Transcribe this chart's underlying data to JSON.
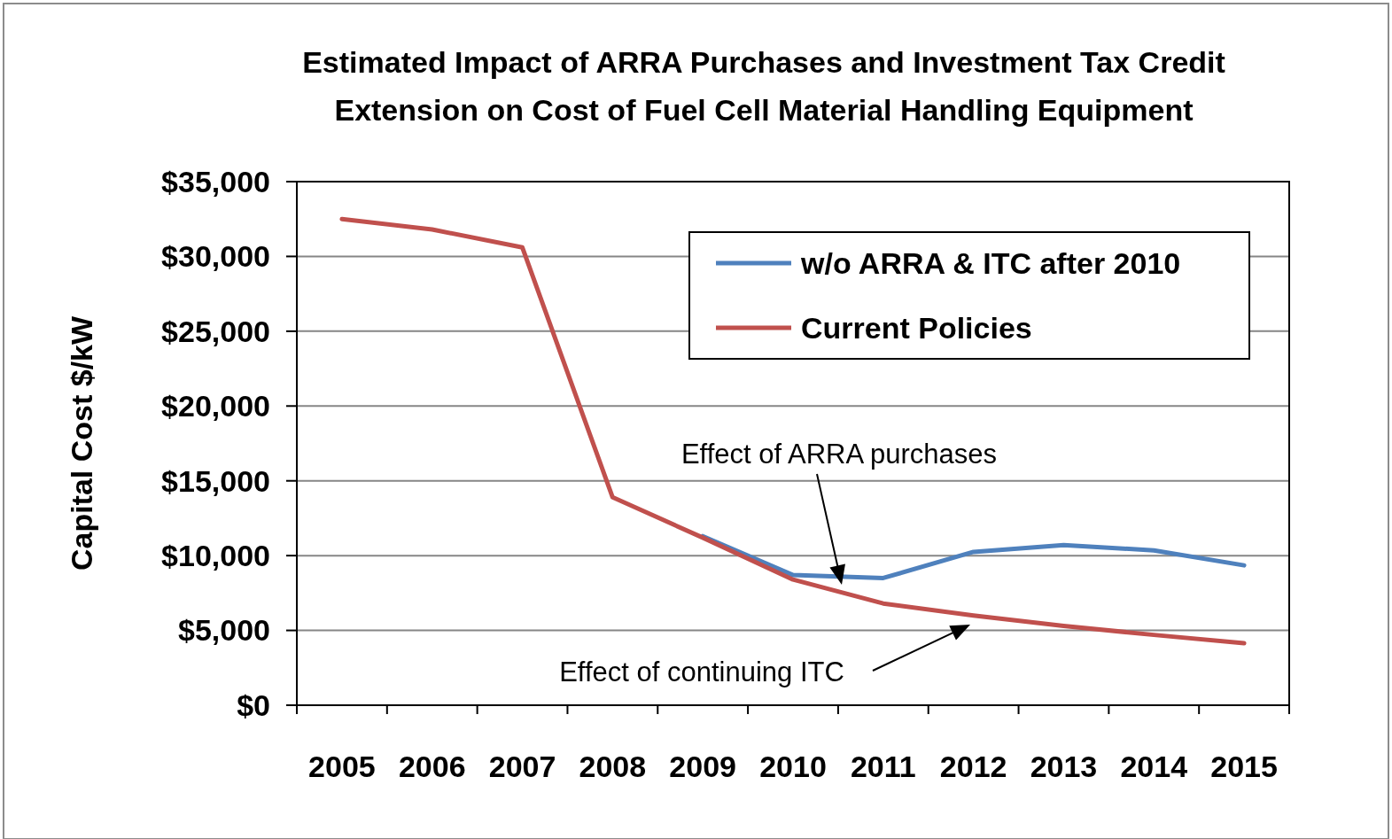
{
  "chart_data": {
    "type": "line",
    "title": "Estimated Impact of ARRA Purchases and Investment Tax Credit Extension on Cost of Fuel Cell Material Handling Equipment",
    "ylabel": "Capital Cost $/kW",
    "categories": [
      "2005",
      "2006",
      "2007",
      "2008",
      "2009",
      "2010",
      "2011",
      "2012",
      "2013",
      "2014",
      "2015"
    ],
    "series": [
      {
        "name": "w/o ARRA & ITC after 2010",
        "color": "#4f81bd",
        "values": [
          null,
          null,
          null,
          null,
          11300,
          8700,
          8500,
          10250,
          10700,
          10350,
          9350
        ]
      },
      {
        "name": "Current Policies",
        "color": "#c0504d",
        "values": [
          32500,
          31800,
          30600,
          13900,
          11200,
          8400,
          6800,
          6000,
          5300,
          4700,
          4150
        ]
      }
    ],
    "ylim": [
      0,
      35000
    ],
    "yticks": [
      {
        "value": 0,
        "label": "$0"
      },
      {
        "value": 5000,
        "label": "$5,000"
      },
      {
        "value": 10000,
        "label": "$10,000"
      },
      {
        "value": 15000,
        "label": "$15,000"
      },
      {
        "value": 20000,
        "label": "$20,000"
      },
      {
        "value": 25000,
        "label": "$25,000"
      },
      {
        "value": 30000,
        "label": "$30,000"
      },
      {
        "value": 35000,
        "label": "$35,000"
      }
    ],
    "grid": "y",
    "legend": "top right",
    "marker": "none",
    "line_style": "solid",
    "annotations": [
      "Effect of ARRA purchases",
      "Effect of continuing ITC"
    ]
  }
}
